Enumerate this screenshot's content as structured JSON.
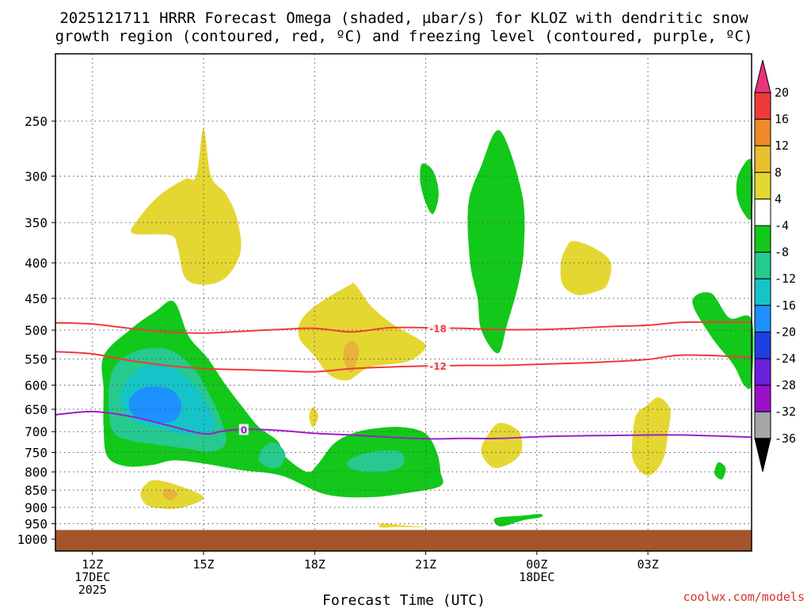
{
  "chart_data": {
    "type": "contour",
    "title_line1": "2025121711 HRRR Forecast Omega (shaded, µbar/s) for KLOZ with dendritic snow",
    "title_line2": "growth region (contoured, red, ºC) and freezing level (contoured, purple, ºC)",
    "xlabel": "Forecast Time (UTC)",
    "credit": "coolwx.com/models",
    "x_ticks": [
      {
        "hour": 12,
        "lines": [
          "12Z",
          "17DEC",
          "2025"
        ]
      },
      {
        "hour": 15,
        "lines": [
          "15Z"
        ]
      },
      {
        "hour": 18,
        "lines": [
          "18Z"
        ]
      },
      {
        "hour": 21,
        "lines": [
          "21Z"
        ]
      },
      {
        "hour": 24,
        "lines": [
          "00Z",
          "18DEC"
        ]
      },
      {
        "hour": 27,
        "lines": [
          "03Z"
        ]
      }
    ],
    "xlim_hours": [
      11,
      29.8
    ],
    "y_ticks_hpa": [
      "250",
      "300",
      "350",
      "400",
      "450",
      "500",
      "550",
      "600",
      "650",
      "700",
      "750",
      "800",
      "850",
      "900",
      "950",
      "1000"
    ],
    "ylim_hpa": [
      200,
      1040
    ],
    "ground_hpa": 970,
    "colorbar": {
      "ticks": [
        "20",
        "16",
        "12",
        "8",
        "4",
        "-4",
        "-8",
        "-12",
        "-16",
        "-20",
        "-24",
        "-28",
        "-32",
        "-36"
      ],
      "colors": [
        "#e8337a",
        "#ee3a3a",
        "#ee8a2a",
        "#e8c02e",
        "#e5d732",
        "#ffffff",
        "#12c81a",
        "#26c98e",
        "#14c4c8",
        "#1e90ff",
        "#1f3fe0",
        "#6a1fd8",
        "#9a10c8",
        "#a6a6a6",
        "#000000"
      ]
    },
    "contour_lines": [
      {
        "name": "dendritic-top-minus18",
        "label": "-18",
        "color": "#f03a3a",
        "points": [
          [
            11,
            488
          ],
          [
            12,
            490
          ],
          [
            13,
            497
          ],
          [
            14,
            503
          ],
          [
            15,
            505
          ],
          [
            16,
            502
          ],
          [
            17,
            499
          ],
          [
            18,
            497
          ],
          [
            19,
            503
          ],
          [
            20,
            496
          ],
          [
            21,
            496
          ],
          [
            22,
            497
          ],
          [
            23,
            499
          ],
          [
            24,
            499
          ],
          [
            25,
            497
          ],
          [
            26,
            494
          ],
          [
            27,
            492
          ],
          [
            28,
            487
          ],
          [
            29.8,
            487
          ]
        ],
        "label_at": [
          21.1,
          497
        ]
      },
      {
        "name": "dendritic-bottom-minus12",
        "label": "-12",
        "color": "#f03a3a",
        "points": [
          [
            11,
            537
          ],
          [
            12,
            541
          ],
          [
            13,
            553
          ],
          [
            14,
            562
          ],
          [
            15,
            568
          ],
          [
            16,
            570
          ],
          [
            17,
            572
          ],
          [
            18,
            574
          ],
          [
            19,
            568
          ],
          [
            20,
            565
          ],
          [
            21,
            563
          ],
          [
            22,
            562
          ],
          [
            23,
            562
          ],
          [
            24,
            560
          ],
          [
            25,
            558
          ],
          [
            26,
            555
          ],
          [
            27,
            551
          ],
          [
            28,
            543
          ],
          [
            29.8,
            547
          ]
        ],
        "label_at": [
          21.1,
          563
        ]
      },
      {
        "name": "freezing-level-zero",
        "label": "0",
        "color": "#9b1fc6",
        "points": [
          [
            11,
            662
          ],
          [
            12,
            655
          ],
          [
            13,
            665
          ],
          [
            14,
            685
          ],
          [
            15,
            705
          ],
          [
            15.5,
            699
          ],
          [
            16,
            695
          ],
          [
            17,
            697
          ],
          [
            18,
            704
          ],
          [
            19,
            708
          ],
          [
            20,
            713
          ],
          [
            21,
            717
          ],
          [
            22,
            716
          ],
          [
            23,
            716
          ],
          [
            24,
            712
          ],
          [
            25,
            710
          ],
          [
            26,
            709
          ],
          [
            27,
            708
          ],
          [
            28,
            708
          ],
          [
            29.8,
            713
          ]
        ],
        "label_at": [
          16.0,
          695
        ]
      }
    ],
    "omega_regions": [
      {
        "name": "ascent-main-outer",
        "color": "#12c81a",
        "points": [
          [
            12.3,
            545
          ],
          [
            13,
            500
          ],
          [
            13.7,
            470
          ],
          [
            14.2,
            455
          ],
          [
            14.6,
            510
          ],
          [
            15.1,
            548
          ],
          [
            15.6,
            600
          ],
          [
            16.1,
            650
          ],
          [
            16.5,
            690
          ],
          [
            17.0,
            722
          ],
          [
            17.2,
            760
          ],
          [
            17.8,
            800
          ],
          [
            18.1,
            778
          ],
          [
            18.5,
            730
          ],
          [
            19.0,
            705
          ],
          [
            19.6,
            693
          ],
          [
            20.4,
            690
          ],
          [
            21.0,
            705
          ],
          [
            21.3,
            750
          ],
          [
            21.4,
            800
          ],
          [
            21.4,
            838
          ],
          [
            20.5,
            858
          ],
          [
            19.5,
            870
          ],
          [
            18.3,
            862
          ],
          [
            17.1,
            810
          ],
          [
            16.0,
            795
          ],
          [
            15.0,
            778
          ],
          [
            14.2,
            770
          ],
          [
            13.6,
            782
          ],
          [
            12.9,
            785
          ],
          [
            12.4,
            760
          ],
          [
            12.3,
            690
          ],
          [
            12.3,
            610
          ]
        ]
      },
      {
        "name": "ascent-main-teal",
        "color": "#26c98e",
        "points": [
          [
            12.5,
            580
          ],
          [
            13.1,
            538
          ],
          [
            14.0,
            532
          ],
          [
            14.7,
            565
          ],
          [
            15.2,
            625
          ],
          [
            15.5,
            680
          ],
          [
            15.6,
            728
          ],
          [
            15.2,
            748
          ],
          [
            14.5,
            740
          ],
          [
            13.7,
            730
          ],
          [
            13.0,
            720
          ],
          [
            12.5,
            690
          ]
        ]
      },
      {
        "name": "ascent-main-cyan",
        "color": "#14c4c8",
        "points": [
          [
            12.8,
            610
          ],
          [
            13.3,
            568
          ],
          [
            14.0,
            562
          ],
          [
            14.6,
            590
          ],
          [
            15.1,
            640
          ],
          [
            15.3,
            690
          ],
          [
            15.0,
            705
          ],
          [
            14.4,
            705
          ],
          [
            13.7,
            690
          ],
          [
            13.1,
            675
          ],
          [
            12.8,
            645
          ]
        ]
      },
      {
        "name": "ascent-main-blue",
        "color": "#1e90ff",
        "points": [
          [
            13.0,
            630
          ],
          [
            13.4,
            605
          ],
          [
            14.1,
            608
          ],
          [
            14.4,
            640
          ],
          [
            14.2,
            675
          ],
          [
            13.6,
            678
          ],
          [
            13.1,
            662
          ]
        ]
      },
      {
        "name": "ascent-small-teal-a",
        "color": "#26c98e",
        "points": [
          [
            16.6,
            740
          ],
          [
            16.9,
            726
          ],
          [
            17.2,
            750
          ],
          [
            17.1,
            782
          ],
          [
            16.8,
            790
          ],
          [
            16.5,
            770
          ]
        ]
      },
      {
        "name": "ascent-small-teal-b",
        "color": "#26c98e",
        "points": [
          [
            19.0,
            765
          ],
          [
            19.6,
            748
          ],
          [
            20.3,
            748
          ],
          [
            20.4,
            780
          ],
          [
            20.0,
            798
          ],
          [
            19.3,
            800
          ],
          [
            18.9,
            785
          ]
        ]
      },
      {
        "name": "ascent-tower",
        "color": "#12c81a",
        "points": [
          [
            23.0,
            258
          ],
          [
            23.6,
            318
          ],
          [
            23.65,
            380
          ],
          [
            23.5,
            430
          ],
          [
            23.2,
            490
          ],
          [
            22.95,
            540
          ],
          [
            22.5,
            500
          ],
          [
            22.4,
            450
          ],
          [
            22.2,
            400
          ],
          [
            22.15,
            330
          ],
          [
            22.5,
            290
          ]
        ]
      },
      {
        "name": "ascent-small-300",
        "color": "#12c81a",
        "points": [
          [
            20.9,
            288
          ],
          [
            21.2,
            295
          ],
          [
            21.35,
            318
          ],
          [
            21.2,
            340
          ],
          [
            21.0,
            328
          ],
          [
            20.85,
            305
          ]
        ]
      },
      {
        "name": "ascent-right-edge-upper",
        "color": "#12c81a",
        "points": [
          [
            29.8,
            285
          ],
          [
            29.8,
            342
          ],
          [
            29.6,
            340
          ],
          [
            29.4,
            320
          ],
          [
            29.45,
            298
          ]
        ]
      },
      {
        "name": "ascent-right-edge-mid",
        "color": "#12c81a",
        "points": [
          [
            28.2,
            455
          ],
          [
            28.7,
            442
          ],
          [
            29.2,
            480
          ],
          [
            29.8,
            483
          ],
          [
            29.8,
            595
          ],
          [
            29.6,
            600
          ],
          [
            29.3,
            560
          ],
          [
            28.7,
            510
          ]
        ]
      },
      {
        "name": "ascent-dot-800",
        "color": "#12c81a",
        "points": [
          [
            28.9,
            775
          ],
          [
            29.1,
            790
          ],
          [
            29.0,
            820
          ],
          [
            28.8,
            805
          ]
        ]
      },
      {
        "name": "ascent-low-950",
        "color": "#12c81a",
        "points": [
          [
            22.9,
            932
          ],
          [
            23.6,
            925
          ],
          [
            24.1,
            920
          ],
          [
            24.1,
            930
          ],
          [
            23.6,
            940
          ],
          [
            23.1,
            958
          ],
          [
            22.9,
            952
          ]
        ]
      },
      {
        "name": "descent-upper-left",
        "color": "#e5d732",
        "points": [
          [
            15.0,
            256
          ],
          [
            15.2,
            300
          ],
          [
            15.6,
            318
          ],
          [
            15.9,
            345
          ],
          [
            16.0,
            385
          ],
          [
            15.6,
            420
          ],
          [
            15.0,
            430
          ],
          [
            14.5,
            420
          ],
          [
            14.3,
            380
          ],
          [
            14.1,
            365
          ],
          [
            13.1,
            363
          ],
          [
            13.2,
            348
          ],
          [
            13.8,
            320
          ],
          [
            14.5,
            303
          ],
          [
            14.8,
            300
          ]
        ]
      },
      {
        "name": "descent-mid",
        "color": "#e5d732",
        "points": [
          [
            18.0,
            462
          ],
          [
            18.9,
            432
          ],
          [
            19.1,
            430
          ],
          [
            19.5,
            460
          ],
          [
            20.1,
            490
          ],
          [
            20.8,
            515
          ],
          [
            21.0,
            530
          ],
          [
            20.5,
            555
          ],
          [
            19.5,
            565
          ],
          [
            18.9,
            590
          ],
          [
            18.4,
            580
          ],
          [
            18.0,
            545
          ],
          [
            17.6,
            515
          ],
          [
            17.6,
            488
          ]
        ]
      },
      {
        "name": "descent-mid-core",
        "color": "#e8b33a",
        "points": [
          [
            19.0,
            518
          ],
          [
            19.2,
            535
          ],
          [
            19.0,
            575
          ],
          [
            18.8,
            555
          ],
          [
            18.8,
            530
          ]
        ]
      },
      {
        "name": "descent-right-400",
        "color": "#e5d732",
        "points": [
          [
            25.0,
            372
          ],
          [
            25.6,
            382
          ],
          [
            26.0,
            400
          ],
          [
            25.9,
            430
          ],
          [
            25.6,
            440
          ],
          [
            25.1,
            445
          ],
          [
            24.7,
            430
          ],
          [
            24.65,
            400
          ],
          [
            24.8,
            380
          ]
        ]
      },
      {
        "name": "descent-right-700",
        "color": "#e5d732",
        "points": [
          [
            27.3,
            625
          ],
          [
            27.6,
            650
          ],
          [
            27.55,
            700
          ],
          [
            27.4,
            770
          ],
          [
            27.0,
            810
          ],
          [
            26.6,
            770
          ],
          [
            26.6,
            700
          ],
          [
            26.7,
            660
          ],
          [
            27.0,
            640
          ]
        ]
      },
      {
        "name": "descent-center-700",
        "color": "#e5d732",
        "points": [
          [
            23.0,
            680
          ],
          [
            23.5,
            698
          ],
          [
            23.6,
            740
          ],
          [
            23.4,
            770
          ],
          [
            22.9,
            790
          ],
          [
            22.6,
            770
          ],
          [
            22.5,
            740
          ],
          [
            22.7,
            705
          ]
        ]
      },
      {
        "name": "descent-tiny-650",
        "color": "#e5d732",
        "points": [
          [
            17.95,
            645
          ],
          [
            18.1,
            665
          ],
          [
            17.95,
            690
          ],
          [
            17.85,
            665
          ]
        ]
      },
      {
        "name": "descent-low-left",
        "color": "#e5d732",
        "points": [
          [
            13.7,
            822
          ],
          [
            14.4,
            840
          ],
          [
            15.0,
            870
          ],
          [
            14.6,
            895
          ],
          [
            14.1,
            905
          ],
          [
            13.5,
            895
          ],
          [
            13.3,
            865
          ],
          [
            13.4,
            838
          ]
        ]
      },
      {
        "name": "descent-low-left-core",
        "color": "#e8b33a",
        "points": [
          [
            14.0,
            845
          ],
          [
            14.3,
            860
          ],
          [
            14.1,
            880
          ],
          [
            13.9,
            862
          ]
        ]
      },
      {
        "name": "descent-low-950",
        "color": "#e5d732",
        "points": [
          [
            19.8,
            950
          ],
          [
            20.4,
            955
          ],
          [
            21.0,
            962
          ],
          [
            20.3,
            960
          ],
          [
            19.8,
            962
          ]
        ]
      }
    ]
  }
}
